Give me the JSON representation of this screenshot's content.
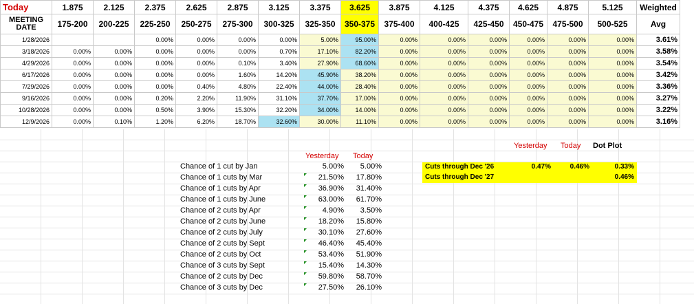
{
  "header": {
    "today_label": "Today",
    "rates": [
      "1.875",
      "2.125",
      "2.375",
      "2.625",
      "2.875",
      "3.125",
      "3.375",
      "3.625",
      "3.875",
      "4.125",
      "4.375",
      "4.625",
      "4.875",
      "5.125"
    ],
    "weighted_label": "Weighted",
    "meeting_label_1": "MEETING",
    "meeting_label_2": "DATE",
    "ranges": [
      "175-200",
      "200-225",
      "225-250",
      "250-275",
      "275-300",
      "300-325",
      "325-350",
      "350-375",
      "375-400",
      "400-425",
      "425-450",
      "450-475",
      "475-500",
      "500-525"
    ],
    "avg_label": "Avg"
  },
  "rows": [
    {
      "date": "1/28/2026",
      "values": [
        "",
        "",
        "0.00%",
        "0.00%",
        "0.00%",
        "0.00%",
        "5.00%",
        "95.00%",
        "0.00%",
        "0.00%",
        "0.00%",
        "0.00%",
        "0.00%",
        "0.00%"
      ],
      "avg": "3.61%"
    },
    {
      "date": "3/18/2026",
      "values": [
        "0.00%",
        "0.00%",
        "0.00%",
        "0.00%",
        "0.00%",
        "0.70%",
        "17.10%",
        "82.20%",
        "0.00%",
        "0.00%",
        "0.00%",
        "0.00%",
        "0.00%",
        "0.00%"
      ],
      "avg": "3.58%"
    },
    {
      "date": "4/29/2026",
      "values": [
        "0.00%",
        "0.00%",
        "0.00%",
        "0.00%",
        "0.10%",
        "3.40%",
        "27.90%",
        "68.60%",
        "0.00%",
        "0.00%",
        "0.00%",
        "0.00%",
        "0.00%",
        "0.00%"
      ],
      "avg": "3.54%"
    },
    {
      "date": "6/17/2026",
      "values": [
        "0.00%",
        "0.00%",
        "0.00%",
        "0.00%",
        "1.60%",
        "14.20%",
        "45.90%",
        "38.20%",
        "0.00%",
        "0.00%",
        "0.00%",
        "0.00%",
        "0.00%",
        "0.00%"
      ],
      "avg": "3.42%"
    },
    {
      "date": "7/29/2026",
      "values": [
        "0.00%",
        "0.00%",
        "0.00%",
        "0.40%",
        "4.80%",
        "22.40%",
        "44.00%",
        "28.40%",
        "0.00%",
        "0.00%",
        "0.00%",
        "0.00%",
        "0.00%",
        "0.00%"
      ],
      "avg": "3.36%"
    },
    {
      "date": "9/16/2026",
      "values": [
        "0.00%",
        "0.00%",
        "0.20%",
        "2.20%",
        "11.90%",
        "31.10%",
        "37.70%",
        "17.00%",
        "0.00%",
        "0.00%",
        "0.00%",
        "0.00%",
        "0.00%",
        "0.00%"
      ],
      "avg": "3.27%"
    },
    {
      "date": "10/28/2026",
      "values": [
        "0.00%",
        "0.00%",
        "0.50%",
        "3.90%",
        "15.30%",
        "32.20%",
        "34.00%",
        "14.00%",
        "0.00%",
        "0.00%",
        "0.00%",
        "0.00%",
        "0.00%",
        "0.00%"
      ],
      "avg": "3.22%"
    },
    {
      "date": "12/9/2026",
      "values": [
        "0.00%",
        "0.10%",
        "1.20%",
        "6.20%",
        "18.70%",
        "32.60%",
        "30.00%",
        "11.10%",
        "0.00%",
        "0.00%",
        "0.00%",
        "0.00%",
        "0.00%",
        "0.00%"
      ],
      "avg": "3.16%"
    }
  ],
  "highlight_colors": {
    "current_rate": "#ffff00",
    "upper_range": "#fafad2",
    "max_probability": "#ace2f2"
  },
  "chance": {
    "yesterday_label": "Yesterday",
    "today_label": "Today",
    "items": [
      {
        "label": "Chance of 1 cut by Jan",
        "yesterday": "5.00%",
        "today": "5.00%"
      },
      {
        "label": "Chance of 1 cuts by Mar",
        "yesterday": "21.50%",
        "today": "17.80%"
      },
      {
        "label": "Chance of 1 cuts by Apr",
        "yesterday": "36.90%",
        "today": "31.40%"
      },
      {
        "label": "Chance of 1 cuts by June",
        "yesterday": "63.00%",
        "today": "61.70%"
      },
      {
        "label": "Chance of 2 cuts by Apr",
        "yesterday": "4.90%",
        "today": "3.50%"
      },
      {
        "label": "Chance of 2 cuts by June",
        "yesterday": "18.20%",
        "today": "15.80%"
      },
      {
        "label": "Chance of 2 cuts by July",
        "yesterday": "30.10%",
        "today": "27.60%"
      },
      {
        "label": "Chance of 2 cuts by Sept",
        "yesterday": "46.40%",
        "today": "45.40%"
      },
      {
        "label": "Chance of 2 cuts by Oct",
        "yesterday": "53.40%",
        "today": "51.90%"
      },
      {
        "label": "Chance of 3 cuts by Sept",
        "yesterday": "15.40%",
        "today": "14.30%"
      },
      {
        "label": "Chance of 2 cuts by Dec",
        "yesterday": "59.80%",
        "today": "58.70%"
      },
      {
        "label": "Chance of 3 cuts by Dec",
        "yesterday": "27.50%",
        "today": "26.10%"
      }
    ]
  },
  "cuts": {
    "yesterday_label": "Yesterday",
    "today_label": "Today",
    "dotplot_label": "Dot Plot",
    "row1": {
      "label": "Cuts through Dec '26",
      "yesterday": "0.47%",
      "today": "0.46%",
      "dotplot": "0.33%"
    },
    "row2": {
      "label": "Cuts through Dec '27",
      "dotplot": "0.46%"
    }
  }
}
